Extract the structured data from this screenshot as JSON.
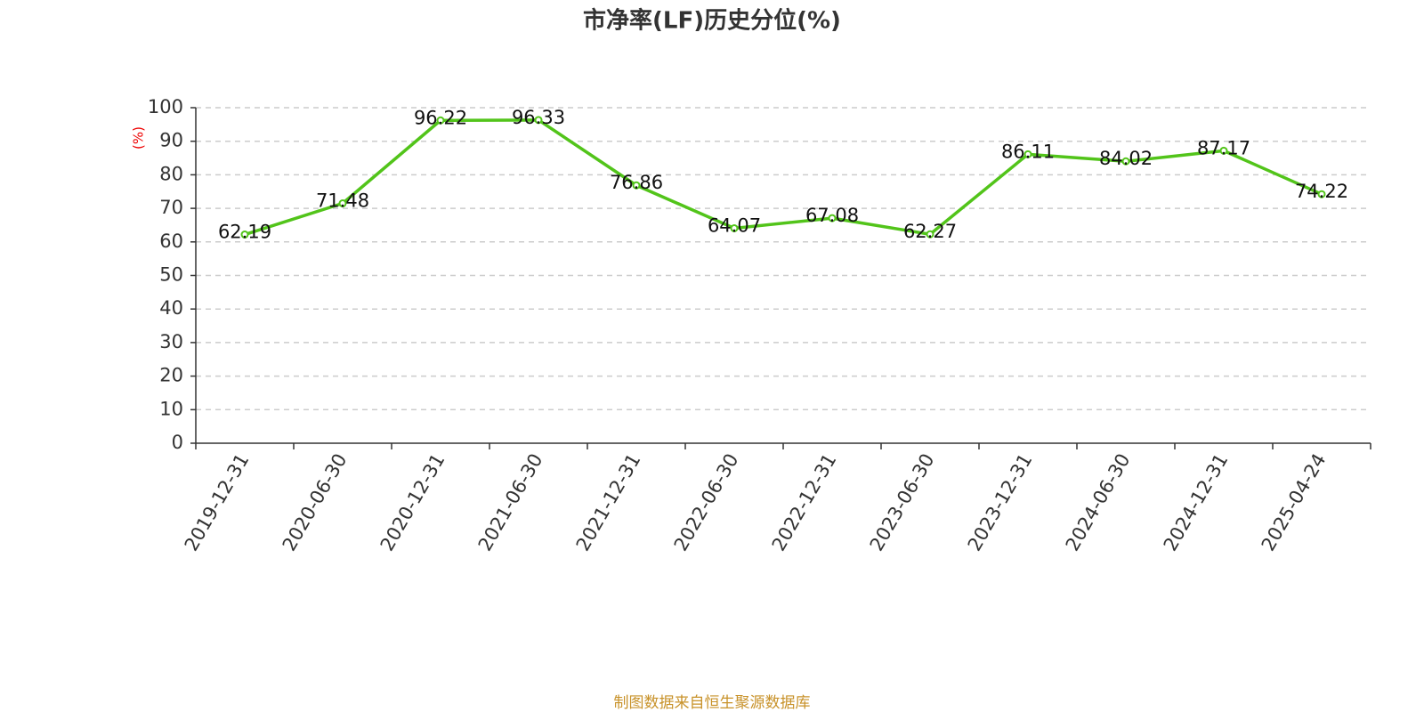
{
  "chart_data": {
    "type": "line",
    "title": "市净率(LF)历史分位(%)",
    "y_label": "(%)",
    "categories": [
      "2019-12-31",
      "2020-06-30",
      "2020-12-31",
      "2021-06-30",
      "2021-12-31",
      "2022-06-30",
      "2022-12-31",
      "2023-06-30",
      "2023-12-31",
      "2024-06-30",
      "2024-12-31",
      "2025-04-24"
    ],
    "values": [
      62.19,
      71.48,
      96.22,
      96.33,
      76.86,
      64.07,
      67.08,
      62.27,
      86.11,
      84.02,
      87.17,
      74.22
    ],
    "color": "#52c41a",
    "ylim": [
      0,
      100
    ],
    "yticks": [
      0,
      10,
      20,
      30,
      40,
      50,
      60,
      70,
      80,
      90,
      100
    ],
    "grid": true,
    "source": "制图数据来自恒生聚源数据库"
  }
}
